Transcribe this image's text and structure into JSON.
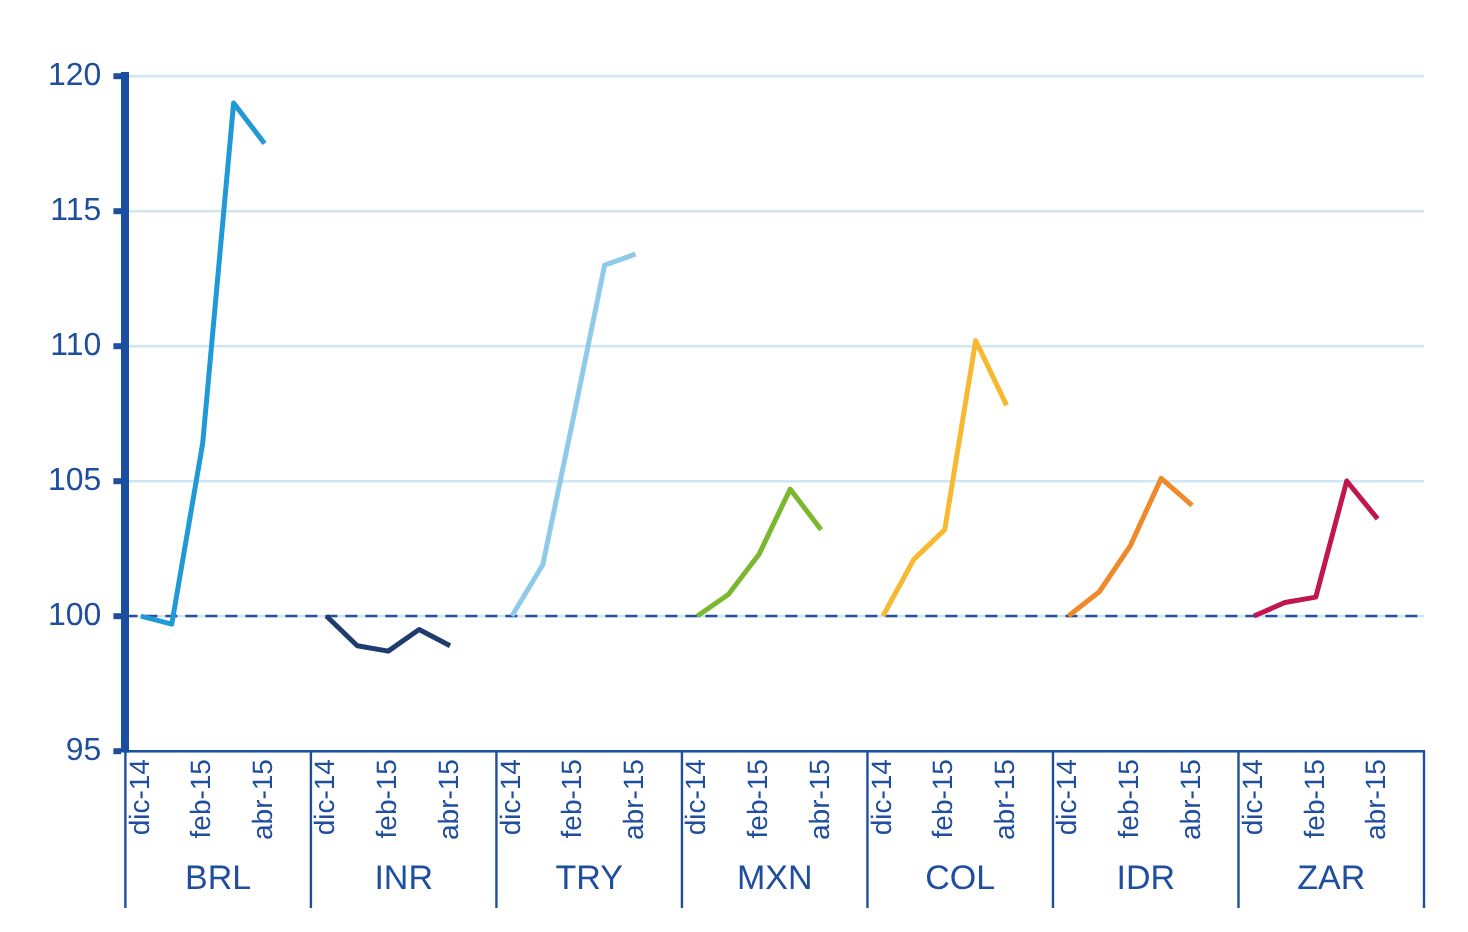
{
  "chart_data": {
    "type": "line",
    "categories": [
      "dic-14",
      null,
      "feb-15",
      null,
      "abr-15",
      null,
      "dic-14",
      null,
      "feb-15",
      null,
      "abr-15",
      null,
      "dic-14",
      null,
      "feb-15",
      null,
      "abr-15",
      null,
      "dic-14",
      null,
      "feb-15",
      null,
      "abr-15",
      null,
      "dic-14",
      null,
      "feb-15",
      null,
      "abr-15",
      null,
      "dic-14",
      null,
      "feb-15",
      null,
      "abr-15",
      null,
      "dic-14",
      null,
      "feb-15",
      null,
      "abr-15",
      null
    ],
    "series": [
      {
        "color": "#1f9ad6",
        "values": [
          100,
          99.7,
          106.4,
          119,
          117.5,
          null,
          null,
          null,
          null,
          null,
          null,
          null,
          null,
          null,
          null,
          null,
          null,
          null,
          null,
          null,
          null,
          null,
          null,
          null,
          null,
          null,
          null,
          null,
          null,
          null,
          null,
          null,
          null,
          null,
          null,
          null,
          null,
          null,
          null,
          null,
          null,
          null
        ]
      },
      {
        "color": "#1f3c6e",
        "values": [
          null,
          null,
          null,
          null,
          null,
          null,
          100,
          98.9,
          98.7,
          99.5,
          98.9,
          null,
          null,
          null,
          null,
          null,
          null,
          null,
          null,
          null,
          null,
          null,
          null,
          null,
          null,
          null,
          null,
          null,
          null,
          null,
          null,
          null,
          null,
          null,
          null,
          null,
          null,
          null,
          null,
          null,
          null,
          null
        ]
      },
      {
        "color": "#8ecbea",
        "values": [
          null,
          null,
          null,
          null,
          null,
          null,
          null,
          null,
          null,
          null,
          null,
          null,
          100,
          101.9,
          107.4,
          113,
          113.4,
          null,
          null,
          null,
          null,
          null,
          null,
          null,
          null,
          null,
          null,
          null,
          null,
          null,
          null,
          null,
          null,
          null,
          null,
          null,
          null,
          null,
          null,
          null,
          null,
          null
        ]
      },
      {
        "color": "#7cb82f",
        "values": [
          null,
          null,
          null,
          null,
          null,
          null,
          null,
          null,
          null,
          null,
          null,
          null,
          null,
          null,
          null,
          null,
          null,
          null,
          100,
          100.8,
          102.3,
          104.7,
          103.2,
          null,
          null,
          null,
          null,
          null,
          null,
          null,
          null,
          null,
          null,
          null,
          null,
          null,
          null,
          null,
          null,
          null,
          null,
          null
        ]
      },
      {
        "color": "#f8b930",
        "values": [
          null,
          null,
          null,
          null,
          null,
          null,
          null,
          null,
          null,
          null,
          null,
          null,
          null,
          null,
          null,
          null,
          null,
          null,
          null,
          null,
          null,
          null,
          null,
          null,
          100,
          102.1,
          103.2,
          110.2,
          107.8,
          null,
          null,
          null,
          null,
          null,
          null,
          null,
          null,
          null,
          null,
          null,
          null,
          null
        ]
      },
      {
        "color": "#ef8a2a",
        "values": [
          null,
          null,
          null,
          null,
          null,
          null,
          null,
          null,
          null,
          null,
          null,
          null,
          null,
          null,
          null,
          null,
          null,
          null,
          null,
          null,
          null,
          null,
          null,
          null,
          null,
          null,
          null,
          null,
          null,
          null,
          100,
          100.9,
          102.6,
          105.1,
          104.1,
          null,
          null,
          null,
          null,
          null,
          null,
          null
        ]
      },
      {
        "color": "#c0174e",
        "values": [
          null,
          null,
          null,
          null,
          null,
          null,
          null,
          null,
          null,
          null,
          null,
          null,
          null,
          null,
          null,
          null,
          null,
          null,
          null,
          null,
          null,
          null,
          null,
          null,
          null,
          null,
          null,
          null,
          null,
          null,
          null,
          null,
          null,
          null,
          null,
          null,
          100,
          100.5,
          100.7,
          105,
          103.6,
          null
        ]
      }
    ],
    "ylim": [
      95,
      120
    ],
    "yticks": [
      95,
      100,
      105,
      110,
      115,
      120
    ],
    "grid": "y",
    "legend": false,
    "marker": "none",
    "line_style": "solid",
    "annotations": [
      "BRL",
      "INR",
      "TRY",
      "MXN",
      "COL",
      "IDR",
      "ZAR"
    ],
    "ref_lines": [
      {
        "axis": "y",
        "value": 100,
        "color": "#2a4f9c",
        "line_style": "dashed"
      }
    ]
  }
}
